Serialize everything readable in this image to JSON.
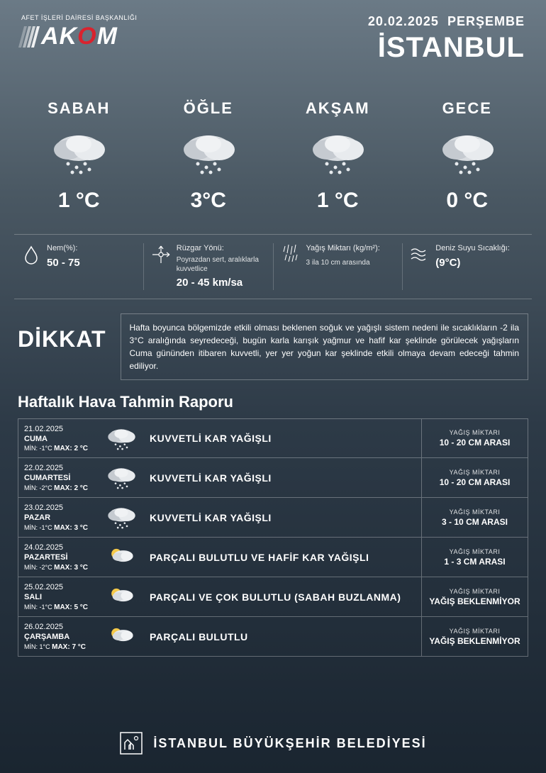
{
  "header": {
    "logo_subtitle": "AFET İŞLERİ DAİRESİ BAŞKANLIĞI",
    "logo_text_1": "AK",
    "logo_text_2": "O",
    "logo_text_3": "M",
    "date": "20.02.2025",
    "day": "PERŞEMBE",
    "city": "İSTANBUL"
  },
  "periods": [
    {
      "name": "SABAH",
      "temp": "1 °C",
      "icon": "snow"
    },
    {
      "name": "ÖĞLE",
      "temp": "3°C",
      "icon": "snow"
    },
    {
      "name": "AKŞAM",
      "temp": "1 °C",
      "icon": "snow"
    },
    {
      "name": "GECE",
      "temp": "0 °C",
      "icon": "snow"
    }
  ],
  "details": {
    "humidity": {
      "label": "Nem(%):",
      "value": "50 - 75"
    },
    "wind": {
      "label": "Rüzgar Yönü:",
      "desc": "Poyrazdan sert, aralıklarla kuvvetlice",
      "value": "20 - 45 km/sa"
    },
    "precip": {
      "label": "Yağış Miktarı (kg/m²):",
      "value": "3 ila 10 cm arasında"
    },
    "sea": {
      "label": "Deniz Suyu Sıcaklığı:",
      "value": "(9°C)"
    }
  },
  "attention": {
    "title": "DİKKAT",
    "text": "Hafta boyunca bölgemizde etkili olması beklenen soğuk ve yağışlı sistem nedeni ile sıcaklıkların -2 ila 3°C aralığında seyredeceği, bugün karla karışık yağmur ve hafif kar şeklinde görülecek yağışların Cuma gününden itibaren kuvvetli, yer yer yoğun kar şeklinde etkili olmaya devam edeceği tahmin ediliyor."
  },
  "weekly": {
    "title": "Haftalık Hava Tahmin Raporu",
    "precip_label": "YAĞIŞ MİKTARI",
    "days": [
      {
        "date": "21.02.2025",
        "name": "CUMA",
        "min": "-1°C",
        "max": "2 °C",
        "desc": "KUVVETLİ KAR YAĞIŞLI",
        "precip": "10 - 20 CM ARASI",
        "icon": "snow"
      },
      {
        "date": "22.02.2025",
        "name": "CUMARTESİ",
        "min": "-2°C",
        "max": "2 °C",
        "desc": "KUVVETLİ KAR YAĞIŞLI",
        "precip": "10 - 20 CM ARASI",
        "icon": "snow"
      },
      {
        "date": "23.02.2025",
        "name": "PAZAR",
        "min": "-1°C",
        "max": "3 °C",
        "desc": "KUVVETLİ KAR YAĞIŞLI",
        "precip": "3 - 10 CM ARASI",
        "icon": "snow"
      },
      {
        "date": "24.02.2025",
        "name": "PAZARTESİ",
        "min": "-2°C",
        "max": "3 °C",
        "desc": "PARÇALI BULUTLU VE HAFİF KAR YAĞIŞLI",
        "precip": "1 - 3 CM ARASI",
        "icon": "partly"
      },
      {
        "date": "25.02.2025",
        "name": "SALI",
        "min": "-1°C",
        "max": "5 °C",
        "desc": "PARÇALI VE ÇOK BULUTLU (SABAH BUZLANMA)",
        "precip": "YAĞIŞ BEKLENMİYOR",
        "icon": "partly"
      },
      {
        "date": "26.02.2025",
        "name": "ÇARŞAMBA",
        "min": "1°C",
        "max": "7 °C",
        "desc": "PARÇALI BULUTLU",
        "precip": "YAĞIŞ BEKLENMİYOR",
        "icon": "partly"
      }
    ]
  },
  "footer": "İSTANBUL BÜYÜKŞEHİR BELEDİYESİ",
  "colors": {
    "accent_red": "#d9232e",
    "bg_top": "#6b7a86",
    "bg_bottom": "#1a2530",
    "border": "rgba(255,255,255,0.3)"
  }
}
